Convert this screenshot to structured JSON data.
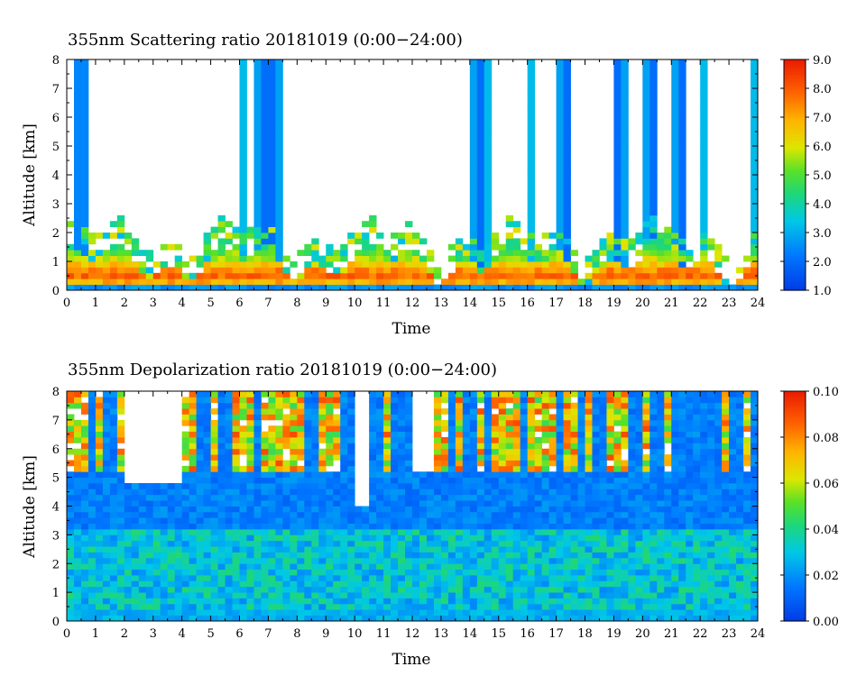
{
  "chart_data": [
    {
      "type": "heatmap",
      "title": "355nm Scattering ratio  20181019 (0:00−24:00)",
      "xlabel": "Time",
      "ylabel": "Altitude [km]",
      "xlim": [
        0,
        24
      ],
      "ylim": [
        0,
        8
      ],
      "x_ticks": [
        "0",
        "1",
        "2",
        "3",
        "4",
        "5",
        "6",
        "7",
        "8",
        "9",
        "10",
        "11",
        "12",
        "13",
        "14",
        "15",
        "16",
        "17",
        "18",
        "19",
        "20",
        "21",
        "22",
        "23",
        "24"
      ],
      "y_ticks": [
        "0",
        "1",
        "2",
        "3",
        "4",
        "5",
        "6",
        "7",
        "8"
      ],
      "colorbar": {
        "min": 1.0,
        "max": 9.0,
        "ticks": [
          "1.0",
          "2.0",
          "3.0",
          "4.0",
          "5.0",
          "6.0",
          "7.0",
          "8.0",
          "9.0"
        ]
      },
      "features": {
        "boundary_layer_top_km": 1.0,
        "tall_columns_hours": [
          0.5,
          6.1,
          6.7,
          7.3,
          14.2,
          14.6,
          16.1,
          17.2,
          19.3,
          20.2,
          21.2,
          22.1,
          23.9
        ]
      }
    },
    {
      "type": "heatmap",
      "title": "355nm Depolarization ratio  20181019 (0:00−24:00)",
      "xlabel": "Time",
      "ylabel": "Altitude [km]",
      "xlim": [
        0,
        24
      ],
      "ylim": [
        0,
        8
      ],
      "x_ticks": [
        "0",
        "1",
        "2",
        "3",
        "4",
        "5",
        "6",
        "7",
        "8",
        "9",
        "10",
        "11",
        "12",
        "13",
        "14",
        "15",
        "16",
        "17",
        "18",
        "19",
        "20",
        "21",
        "22",
        "23",
        "24"
      ],
      "y_ticks": [
        "0",
        "1",
        "2",
        "3",
        "4",
        "5",
        "6",
        "7",
        "8"
      ],
      "colorbar": {
        "min": 0.0,
        "max": 0.1,
        "ticks": [
          "0.00",
          "0.02",
          "0.04",
          "0.06",
          "0.08",
          "0.10"
        ]
      },
      "features": {
        "blank_regions": [
          {
            "t": [
              2.0,
              4.0
            ],
            "alt_km_from": 4.8
          },
          {
            "t": [
              9.9,
              10.5
            ],
            "alt_km_from": 4.0
          },
          {
            "t": [
              12.0,
              12.8
            ],
            "alt_km_from": 5.2
          }
        ]
      }
    }
  ]
}
